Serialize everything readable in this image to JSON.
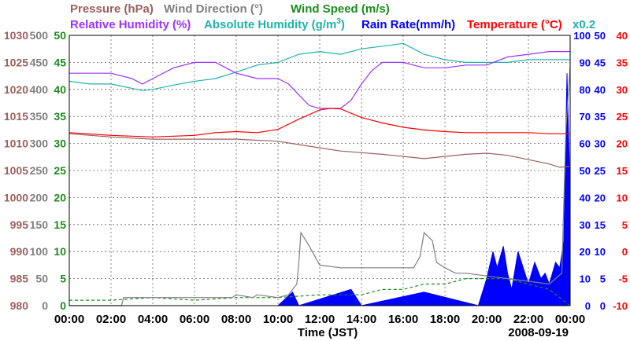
{
  "chart_data": {
    "type": "line",
    "date": "2008-09-19",
    "xlabel": "Time (JST)",
    "x_ticks": [
      "00:00",
      "02:00",
      "04:00",
      "06:00",
      "08:00",
      "10:00",
      "12:00",
      "14:00",
      "16:00",
      "18:00",
      "20:00",
      "22:00",
      "00:00"
    ],
    "legend": {
      "pressure": "Pressure (hPa)",
      "wind_direction": "Wind Direction (°)",
      "wind_speed": "Wind Speed (m/s)",
      "relative_humidity": "Relative Humidity (%)",
      "absolute_humidity_a": "Absolute Humidity (g/m",
      "absolute_humidity_sup": "3",
      "absolute_humidity_b": ")",
      "rain_rate": "Rain Rate(mm/h)",
      "temperature": "Temperature (°C)",
      "scale_note": "x0.2"
    },
    "axes": {
      "pressure": {
        "ylim": [
          980,
          1030
        ],
        "ticks": [
          "980",
          "985",
          "990",
          "995",
          "1000",
          "1005",
          "1010",
          "1015",
          "1020",
          "1025",
          "1030"
        ],
        "color": "#9b5f5f"
      },
      "wind_direction": {
        "ylim": [
          0,
          500
        ],
        "ticks": [
          "0",
          "50",
          "100",
          "150",
          "200",
          "250",
          "300",
          "350",
          "400",
          "450",
          "500"
        ],
        "color": "#7f7f7f"
      },
      "wind_speed": {
        "ylim": [
          0,
          50
        ],
        "ticks": [
          "0",
          "5",
          "10",
          "15",
          "20",
          "25",
          "30",
          "35",
          "40",
          "45",
          "50"
        ],
        "color": "#1a8c1a"
      },
      "relative_humidity": {
        "ylim": [
          0,
          100
        ],
        "ticks": [
          "0",
          "10",
          "20",
          "30",
          "40",
          "50",
          "60",
          "70",
          "80",
          "90",
          "100"
        ],
        "color": "#0000ff"
      },
      "rain_rate": {
        "ylim": [
          0,
          50
        ],
        "ticks": [
          "0",
          "5",
          "10",
          "15",
          "20",
          "25",
          "30",
          "35",
          "40",
          "45",
          "50"
        ],
        "color": "#0000ff"
      },
      "temperature": {
        "ylim": [
          -10,
          40
        ],
        "ticks": [
          "-10",
          "-5",
          "0",
          "5",
          "10",
          "15",
          "20",
          "25",
          "30",
          "35",
          "40"
        ],
        "color": "#ff0000"
      }
    },
    "series": [
      {
        "name": "Pressure",
        "unit": "hPa",
        "color": "#9b5f5f",
        "x": [
          0,
          2,
          4,
          6,
          8,
          10,
          11,
          12,
          13,
          14,
          15,
          16,
          17,
          18,
          19,
          20,
          21,
          22,
          23,
          23.5,
          24
        ],
        "values": [
          1011.8,
          1011.2,
          1010.8,
          1010.8,
          1010.8,
          1010.4,
          1009.8,
          1009.2,
          1008.6,
          1008.3,
          1008,
          1007.6,
          1007.2,
          1007.6,
          1008,
          1008.2,
          1007.8,
          1007,
          1006.2,
          1005.6,
          1005.8
        ]
      },
      {
        "name": "Relative Humidity",
        "unit": "%",
        "color": "#9933ff",
        "x": [
          0,
          2,
          3,
          3.5,
          4,
          5,
          6,
          7,
          7.5,
          8,
          9,
          10,
          10.5,
          11,
          11.5,
          12,
          12.5,
          13,
          13.5,
          14,
          14.5,
          15,
          16,
          17,
          18,
          19,
          20,
          21,
          22,
          23,
          24
        ],
        "values": [
          86,
          86,
          84,
          82,
          84,
          88,
          90,
          90,
          88,
          86,
          84,
          84,
          82,
          78,
          74,
          73,
          73,
          73,
          76,
          82,
          87,
          90,
          90,
          88,
          88,
          89,
          89,
          92,
          93,
          94,
          94
        ]
      },
      {
        "name": "Absolute Humidity",
        "unit": "g/m3 x0.2",
        "color": "#20b2aa",
        "x": [
          0,
          1,
          2,
          3,
          3.5,
          4,
          5,
          6,
          7,
          8,
          9,
          10,
          11,
          12,
          13,
          14,
          15,
          16,
          16.5,
          17,
          18,
          19,
          20,
          21,
          22,
          23,
          24
        ],
        "values": [
          41.5,
          41,
          41,
          40.2,
          39.8,
          40,
          40.8,
          41.5,
          42,
          43.2,
          44.5,
          45,
          46.5,
          47,
          46.5,
          47.5,
          48,
          48.5,
          47.5,
          46.5,
          45.5,
          45,
          45,
          45,
          45.5,
          45.5,
          45.5
        ]
      },
      {
        "name": "Temperature",
        "unit": "°C",
        "color": "#ff0000",
        "x": [
          0,
          2,
          4,
          6,
          7,
          8,
          9,
          10,
          11,
          12,
          12.5,
          13,
          14,
          15,
          16,
          17,
          18,
          19,
          20,
          21,
          22,
          23,
          24
        ],
        "values": [
          22,
          21.5,
          21.2,
          21.5,
          22,
          22.2,
          22,
          22.6,
          24.5,
          26.2,
          26.5,
          26.4,
          24.8,
          23.8,
          23,
          22.5,
          22.2,
          22,
          22,
          22,
          22,
          21.8,
          21.8
        ]
      },
      {
        "name": "Wind Direction",
        "unit": "°",
        "color": "#7f7f7f",
        "x": [
          0,
          2.5,
          2.6,
          7.8,
          8,
          8.8,
          9,
          10,
          10.5,
          10.9,
          11,
          11.1,
          11.5,
          12,
          13,
          14,
          15,
          16,
          16.5,
          16.8,
          17,
          17.4,
          17.6,
          18,
          18.5,
          19,
          20,
          21,
          22,
          23,
          23.6,
          23.8,
          24
        ],
        "values": [
          0,
          0,
          15,
          15,
          20,
          15,
          20,
          15,
          20,
          40,
          80,
          135,
          110,
          75,
          70,
          70,
          70,
          70,
          70,
          90,
          135,
          120,
          80,
          70,
          60,
          60,
          55,
          50,
          45,
          40,
          60,
          330,
          440
        ]
      },
      {
        "name": "Wind Speed",
        "unit": "m/s",
        "color": "#1a8c1a",
        "x": [
          0,
          2,
          4,
          6,
          8,
          10,
          12,
          14,
          15,
          16,
          17,
          18,
          19,
          20,
          21,
          22,
          23,
          24
        ],
        "values": [
          1,
          1,
          1.5,
          1,
          1.5,
          1.5,
          2,
          2,
          3,
          3,
          4,
          4,
          5,
          5,
          5,
          4,
          3,
          0
        ]
      },
      {
        "name": "Rain Rate",
        "unit": "mm/h",
        "color": "#0000ff",
        "x": [
          0,
          10,
          10.7,
          11,
          13.5,
          14,
          17,
          19.6,
          20,
          20.3,
          20.5,
          20.8,
          21,
          21.2,
          21.5,
          22,
          22.3,
          22.6,
          22.8,
          23,
          23.3,
          23.5,
          23.7,
          23.85,
          24
        ],
        "values": [
          0,
          0,
          2.5,
          0,
          3,
          0,
          2.5,
          0,
          5,
          10,
          7,
          11,
          6,
          3,
          10,
          4,
          8,
          5,
          6,
          4,
          8,
          7,
          12,
          43,
          20
        ]
      }
    ]
  }
}
